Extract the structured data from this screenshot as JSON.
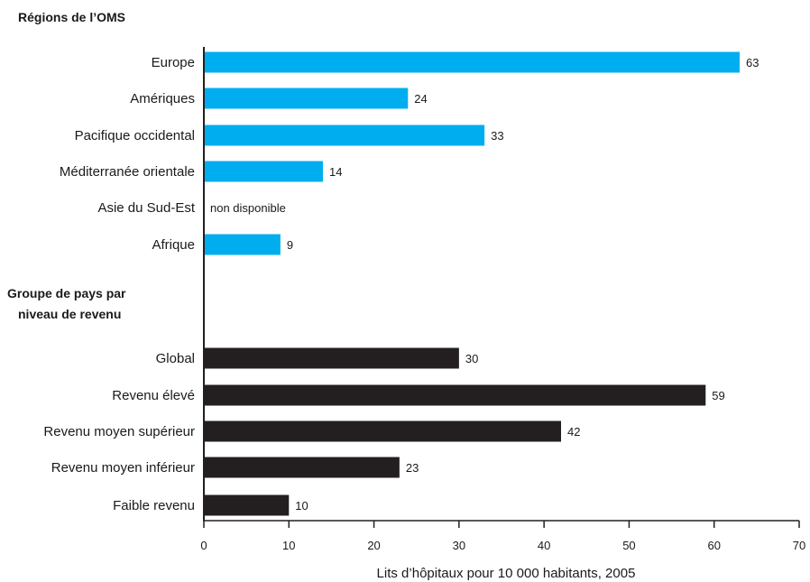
{
  "chart_data": {
    "type": "bar",
    "orientation": "horizontal",
    "xlabel": "Lits d’hôpitaux pour 10 000 habitants, 2005",
    "xlim": [
      0,
      70
    ],
    "xticks": [
      0,
      10,
      20,
      30,
      40,
      50,
      60,
      70
    ],
    "grid": false,
    "groups": [
      {
        "title": [
          "Régions de l’OMS"
        ],
        "color": "#00aeef",
        "bars": [
          {
            "label": "Europe",
            "value": 63,
            "value_label": "63"
          },
          {
            "label": "Amériques",
            "value": 24,
            "value_label": "24"
          },
          {
            "label": "Pacifique occidental",
            "value": 33,
            "value_label": "33"
          },
          {
            "label": "Méditerranée orientale",
            "value": 14,
            "value_label": "14"
          },
          {
            "label": "Asie du Sud-Est",
            "value": null,
            "value_label": "non disponible"
          },
          {
            "label": "Afrique",
            "value": 9,
            "value_label": "9"
          }
        ]
      },
      {
        "title": [
          "Groupe de pays par",
          "niveau de revenu"
        ],
        "color": "#231f20",
        "bars": [
          {
            "label": "Global",
            "value": 30,
            "value_label": "30"
          },
          {
            "label": "Revenu élevé",
            "value": 59,
            "value_label": "59"
          },
          {
            "label": "Revenu moyen supérieur",
            "value": 42,
            "value_label": "42"
          },
          {
            "label": "Revenu moyen inférieur",
            "value": 23,
            "value_label": "23"
          },
          {
            "label": "Faible revenu",
            "value": 10,
            "value_label": "10"
          }
        ]
      }
    ]
  }
}
